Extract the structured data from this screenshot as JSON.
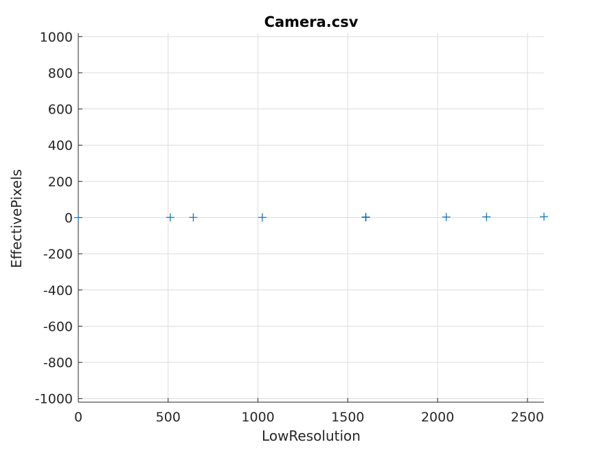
{
  "chart_data": {
    "type": "scatter",
    "title": "Camera.csv",
    "xlabel": "LowResolution",
    "ylabel": "EffectivePixels",
    "xlim": [
      0,
      2592
    ],
    "ylim": [
      -1020,
      1020
    ],
    "xticks": [
      0,
      500,
      1000,
      1500,
      2000,
      2500
    ],
    "yticks": [
      -1000,
      -800,
      -600,
      -400,
      -200,
      0,
      200,
      400,
      600,
      800,
      1000
    ],
    "xtick_labels": [
      "0",
      "500",
      "1000",
      "1500",
      "2000",
      "2500"
    ],
    "ytick_labels": [
      "-1000",
      "-800",
      "-600",
      "-400",
      "-200",
      "0",
      "200",
      "400",
      "600",
      "800",
      "1000"
    ],
    "grid": true,
    "marker": "+",
    "marker_color": "#0072BD",
    "points": [
      {
        "x": 0,
        "y": 0
      },
      {
        "x": 512,
        "y": 1
      },
      {
        "x": 640,
        "y": 1
      },
      {
        "x": 1024,
        "y": 1
      },
      {
        "x": 1600,
        "y": 2
      },
      {
        "x": 1600,
        "y": 2
      },
      {
        "x": 1600,
        "y": 2
      },
      {
        "x": 1600,
        "y": 3
      },
      {
        "x": 2048,
        "y": 3
      },
      {
        "x": 2272,
        "y": 4
      },
      {
        "x": 2592,
        "y": 5
      }
    ]
  }
}
